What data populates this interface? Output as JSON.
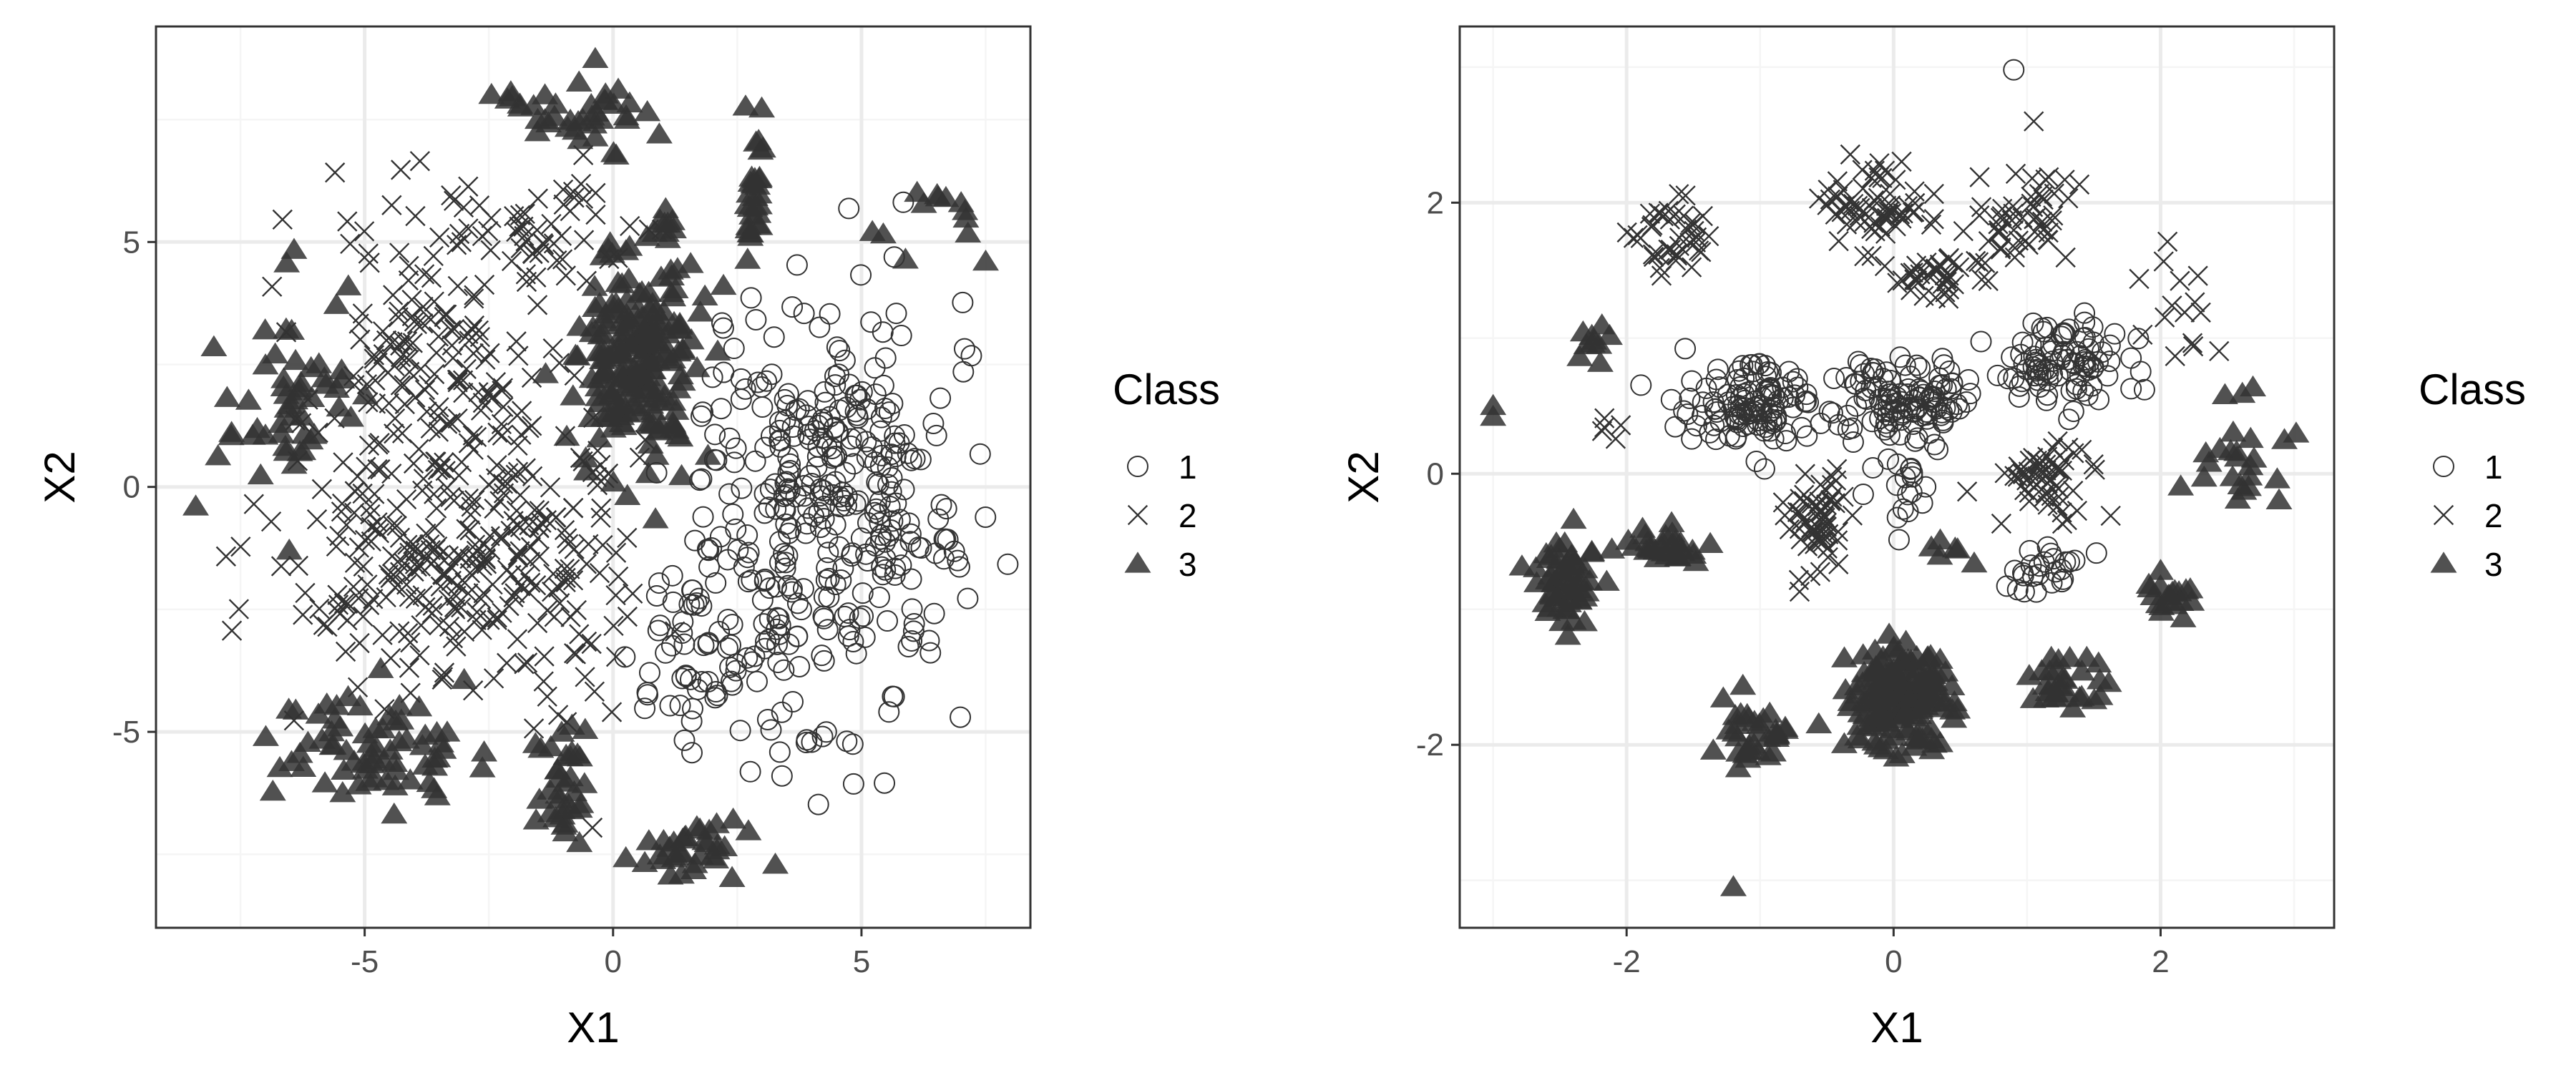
{
  "colors": {
    "marker": "#333333",
    "panel_border": "#333333",
    "grid_major": "#ebebeb",
    "grid_minor": "#f5f5f5",
    "background": "#ffffff"
  },
  "legend": {
    "title": "Class",
    "entries": [
      {
        "label": "1",
        "shape": "circle"
      },
      {
        "label": "2",
        "shape": "cross"
      },
      {
        "label": "3",
        "shape": "triangle"
      }
    ]
  },
  "chart_data": [
    {
      "type": "scatter",
      "title": "",
      "xlabel": "X1",
      "ylabel": "X2",
      "xlim": [
        -9.2,
        8.4
      ],
      "ylim": [
        -9.0,
        9.4
      ],
      "xticks": [
        -5,
        0,
        5
      ],
      "yticks": [
        -5,
        0,
        5
      ],
      "grid": true,
      "legend_position": "right",
      "clusters": [
        {
          "class": "1",
          "cx": 4.2,
          "cy": -0.5,
          "sx": 1.6,
          "sy": 2.6,
          "n": 360
        },
        {
          "class": "1",
          "cx": 1.7,
          "cy": -3.6,
          "sx": 1.0,
          "sy": 1.2,
          "n": 50
        },
        {
          "class": "2",
          "cx": -3.9,
          "cy": 2.3,
          "sx": 1.4,
          "sy": 2.0,
          "n": 150
        },
        {
          "class": "2",
          "cx": -4.0,
          "cy": -1.6,
          "sx": 1.8,
          "sy": 1.3,
          "n": 170
        },
        {
          "class": "2",
          "cx": -1.3,
          "cy": -1.5,
          "sx": 1.1,
          "sy": 2.2,
          "n": 120
        },
        {
          "class": "2",
          "cx": -1.8,
          "cy": 5.2,
          "sx": 1.4,
          "sy": 0.8,
          "n": 60
        },
        {
          "class": "3",
          "cx": 0.5,
          "cy": 2.5,
          "sx": 0.75,
          "sy": 1.3,
          "n": 210
        },
        {
          "class": "3",
          "cx": -6.3,
          "cy": 1.9,
          "sx": 0.6,
          "sy": 1.2,
          "n": 45
        },
        {
          "class": "3",
          "cx": -4.9,
          "cy": -5.3,
          "sx": 1.2,
          "sy": 0.8,
          "n": 70
        },
        {
          "class": "3",
          "cx": -0.9,
          "cy": -6.2,
          "sx": 0.35,
          "sy": 0.9,
          "n": 35
        },
        {
          "class": "3",
          "cx": 1.6,
          "cy": -7.3,
          "sx": 0.6,
          "sy": 0.4,
          "n": 35
        },
        {
          "class": "3",
          "cx": -0.6,
          "cy": 7.6,
          "sx": 0.9,
          "sy": 0.5,
          "n": 35
        },
        {
          "class": "3",
          "cx": 2.8,
          "cy": 5.9,
          "sx": 0.15,
          "sy": 0.8,
          "n": 30
        },
        {
          "class": "3",
          "cx": 6.2,
          "cy": 5.7,
          "sx": 0.9,
          "sy": 0.6,
          "n": 12
        },
        {
          "class": "3",
          "cx": -7.4,
          "cy": 0.9,
          "sx": 0.6,
          "sy": 0.9,
          "n": 8
        },
        {
          "class": "3",
          "cx": 1.1,
          "cy": 5.4,
          "sx": 0.1,
          "sy": 0.2,
          "n": 8
        },
        {
          "class": "3",
          "cx": -2.1,
          "cy": 7.9,
          "sx": 0.3,
          "sy": 0.2,
          "n": 5
        }
      ],
      "points": [
        {
          "x": -8.4,
          "y": -0.4,
          "class": "3"
        },
        {
          "x": 7.5,
          "y": 4.6,
          "class": "3"
        },
        {
          "x": 3.4,
          "y": -5.9,
          "class": "1"
        }
      ]
    },
    {
      "type": "scatter",
      "title": "",
      "xlabel": "X1",
      "ylabel": "X2",
      "xlim": [
        -3.25,
        3.3
      ],
      "ylim": [
        -3.35,
        3.3
      ],
      "xticks": [
        -2,
        0,
        2
      ],
      "yticks": [
        -2,
        0,
        2
      ],
      "grid": true,
      "legend_position": "right",
      "clusters": [
        {
          "class": "1",
          "cx": -1.05,
          "cy": 0.5,
          "sx": 0.35,
          "sy": 0.2,
          "n": 120
        },
        {
          "class": "1",
          "cx": 0.1,
          "cy": 0.55,
          "sx": 0.3,
          "sy": 0.2,
          "n": 110
        },
        {
          "class": "1",
          "cx": 1.3,
          "cy": 0.8,
          "sx": 0.3,
          "sy": 0.22,
          "n": 90
        },
        {
          "class": "1",
          "cx": 0.1,
          "cy": -0.2,
          "sx": 0.15,
          "sy": 0.25,
          "n": 20
        },
        {
          "class": "1",
          "cx": 1.15,
          "cy": -0.7,
          "sx": 0.2,
          "sy": 0.1,
          "n": 25
        },
        {
          "class": "2",
          "cx": -1.65,
          "cy": 1.75,
          "sx": 0.2,
          "sy": 0.15,
          "n": 40
        },
        {
          "class": "2",
          "cx": -0.1,
          "cy": 2.0,
          "sx": 0.25,
          "sy": 0.2,
          "n": 60
        },
        {
          "class": "2",
          "cx": 0.95,
          "cy": 1.9,
          "sx": 0.25,
          "sy": 0.2,
          "n": 50
        },
        {
          "class": "2",
          "cx": 0.3,
          "cy": 1.45,
          "sx": 0.25,
          "sy": 0.12,
          "n": 40
        },
        {
          "class": "2",
          "cx": -0.55,
          "cy": -0.35,
          "sx": 0.15,
          "sy": 0.25,
          "n": 60
        },
        {
          "class": "2",
          "cx": 1.1,
          "cy": -0.05,
          "sx": 0.25,
          "sy": 0.2,
          "n": 55
        },
        {
          "class": "2",
          "cx": 2.1,
          "cy": 1.4,
          "sx": 0.2,
          "sy": 0.4,
          "n": 15
        },
        {
          "class": "2",
          "cx": -2.1,
          "cy": 0.35,
          "sx": 0.1,
          "sy": 0.08,
          "n": 5
        },
        {
          "class": "3",
          "cx": 0.05,
          "cy": -1.65,
          "sx": 0.25,
          "sy": 0.22,
          "n": 180
        },
        {
          "class": "3",
          "cx": -2.45,
          "cy": -0.75,
          "sx": 0.15,
          "sy": 0.2,
          "n": 60
        },
        {
          "class": "3",
          "cx": -1.7,
          "cy": -0.55,
          "sx": 0.15,
          "sy": 0.1,
          "n": 30
        },
        {
          "class": "3",
          "cx": -1.05,
          "cy": -1.95,
          "sx": 0.2,
          "sy": 0.15,
          "n": 35
        },
        {
          "class": "3",
          "cx": 1.25,
          "cy": -1.55,
          "sx": 0.2,
          "sy": 0.12,
          "n": 30
        },
        {
          "class": "3",
          "cx": 2.1,
          "cy": -0.9,
          "sx": 0.1,
          "sy": 0.12,
          "n": 20
        },
        {
          "class": "3",
          "cx": 2.65,
          "cy": 0.05,
          "sx": 0.2,
          "sy": 0.25,
          "n": 25
        },
        {
          "class": "3",
          "cx": -2.2,
          "cy": 0.95,
          "sx": 0.15,
          "sy": 0.1,
          "n": 10
        },
        {
          "class": "3",
          "cx": 0.35,
          "cy": -0.6,
          "sx": 0.15,
          "sy": 0.1,
          "n": 6
        }
      ],
      "points": [
        {
          "x": 0.9,
          "y": 2.98,
          "class": "1"
        },
        {
          "x": -3.0,
          "y": 0.5,
          "class": "3"
        },
        {
          "x": -3.0,
          "y": 0.42,
          "class": "3"
        },
        {
          "x": -1.2,
          "y": -3.05,
          "class": "3"
        },
        {
          "x": 1.05,
          "y": 2.6,
          "class": "2"
        }
      ]
    }
  ]
}
